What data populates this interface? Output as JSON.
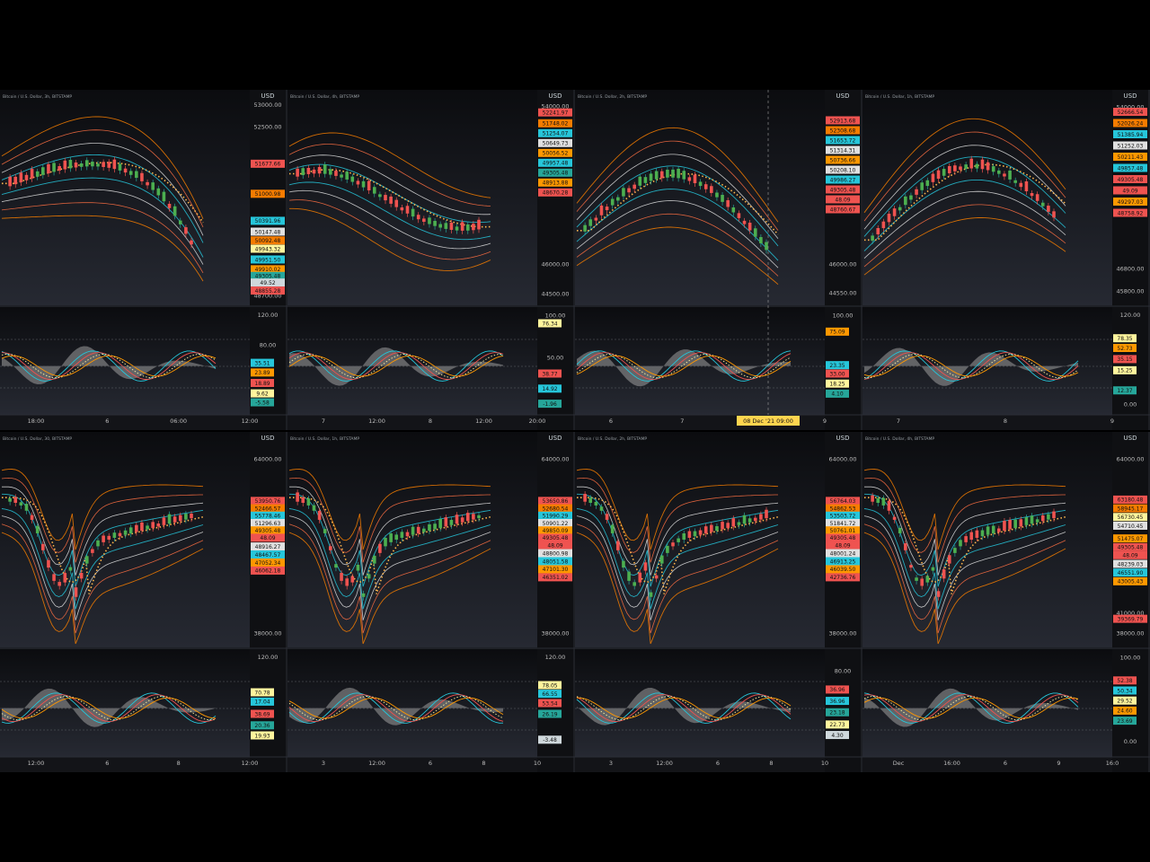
{
  "layout_title": "",
  "panels": [
    {
      "id": "p1",
      "title": "Bitcoin / U.S. Dollar, 3h, BITSTAMP",
      "unit": "USD",
      "price_ticks": [
        {
          "v": 53000,
          "label": "53000.00"
        },
        {
          "v": 52500,
          "label": "52500.00"
        },
        {
          "v": 48700,
          "label": "48700.00"
        }
      ],
      "price_badges": [
        {
          "v": 51677,
          "label": "51677.66",
          "color": "#ef5350"
        },
        {
          "v": 51000,
          "label": "51000.98",
          "color": "#f57c00"
        },
        {
          "v": 50391,
          "label": "50391.96",
          "color": "#26c6da"
        },
        {
          "v": 50147,
          "label": "50147.48",
          "color": "#e0e0e0"
        },
        {
          "v": 49950,
          "label": "50092.48",
          "color": "#f57c00"
        },
        {
          "v": 49763,
          "label": "49943.32",
          "color": "#fff59d"
        },
        {
          "v": 49520,
          "label": "49951.50",
          "color": "#26c6da"
        },
        {
          "v": 49300,
          "label": "49910.02",
          "color": "#ff9800"
        },
        {
          "v": 49150,
          "label": "49305.48",
          "color": "#26a69a"
        },
        {
          "v": 49000,
          "label": "49.52",
          "color": "#cfd8dc"
        },
        {
          "v": 48820,
          "label": "48855.28",
          "color": "#ef5350"
        }
      ],
      "price_range": [
        48650,
        53100
      ],
      "osc_ticks": [
        {
          "v": 120,
          "label": "120.00"
        },
        {
          "v": 80,
          "label": "80.00"
        }
      ],
      "osc_badges": [
        {
          "v": 55,
          "label": "35.51",
          "color": "#26c6da"
        },
        {
          "v": 42,
          "label": "23.89",
          "color": "#ff9800"
        },
        {
          "v": 28,
          "label": "18.89",
          "color": "#ef5350"
        },
        {
          "v": 14,
          "label": "9.62",
          "color": "#fff59d"
        },
        {
          "v": 2,
          "label": "-5.58",
          "color": "#26a69a"
        }
      ],
      "osc_range": [
        -10,
        125
      ],
      "time_ticks": [
        "18:00",
        "6",
        "06:00",
        "12:00"
      ],
      "trend": "down",
      "osc_seed": 1
    },
    {
      "id": "p2",
      "title": "Bitcoin / U.S. Dollar, 4h, BITSTAMP",
      "unit": "USD",
      "price_ticks": [
        {
          "v": 54000,
          "label": "54000.00"
        },
        {
          "v": 46000,
          "label": "46000.00"
        },
        {
          "v": 44500,
          "label": "44500.00"
        }
      ],
      "price_badges": [
        {
          "v": 53700,
          "label": "52241.97",
          "color": "#ef5350"
        },
        {
          "v": 53150,
          "label": "51748.02",
          "color": "#f57c00"
        },
        {
          "v": 52650,
          "label": "51254.07",
          "color": "#26c6da"
        },
        {
          "v": 52150,
          "label": "50649.73",
          "color": "#e0e0e0"
        },
        {
          "v": 51650,
          "label": "50056.52",
          "color": "#ff9800"
        },
        {
          "v": 51150,
          "label": "49957.48",
          "color": "#26c6da"
        },
        {
          "v": 50650,
          "label": "49305.48",
          "color": "#26a69a"
        },
        {
          "v": 50150,
          "label": "48913.88",
          "color": "#ff9800"
        },
        {
          "v": 49650,
          "label": "48670.28",
          "color": "#ef5350"
        }
      ],
      "price_range": [
        44300,
        54300
      ],
      "osc_ticks": [
        {
          "v": 100,
          "label": "100.00"
        },
        {
          "v": 50,
          "label": "50.00"
        }
      ],
      "osc_badges": [
        {
          "v": 90,
          "label": "76.34",
          "color": "#fff59d"
        },
        {
          "v": 30,
          "label": "38.77",
          "color": "#ef5350"
        },
        {
          "v": 12,
          "label": "14.92",
          "color": "#26c6da"
        },
        {
          "v": -6,
          "label": "-1.96",
          "color": "#26a69a"
        }
      ],
      "osc_range": [
        -15,
        105
      ],
      "time_ticks": [
        "7",
        "12:00",
        "8",
        "12:00",
        "20:00"
      ],
      "trend": "flat",
      "osc_seed": 2
    },
    {
      "id": "p3",
      "title": "Bitcoin / U.S. Dollar, 2h, BITSTAMP",
      "unit": "USD",
      "price_ticks": [
        {
          "v": 46000,
          "label": "46000.00"
        },
        {
          "v": 44550,
          "label": "44550.00"
        }
      ],
      "price_badges": [
        {
          "v": 53300,
          "label": "52913.68",
          "color": "#ef5350"
        },
        {
          "v": 52800,
          "label": "52308.68",
          "color": "#f57c00"
        },
        {
          "v": 52300,
          "label": "51653.72",
          "color": "#26c6da"
        },
        {
          "v": 51800,
          "label": "51314.31",
          "color": "#e0e0e0"
        },
        {
          "v": 51300,
          "label": "50736.66",
          "color": "#ff9800"
        },
        {
          "v": 50800,
          "label": "50208.10",
          "color": "#e0e0e0"
        },
        {
          "v": 50300,
          "label": "49986.27",
          "color": "#26c6da"
        },
        {
          "v": 49800,
          "label": "49305.48",
          "color": "#ef5350"
        },
        {
          "v": 49300,
          "label": "48.09",
          "color": "#ef5350"
        },
        {
          "v": 48800,
          "label": "48760.67",
          "color": "#ef5350"
        }
      ],
      "price_range": [
        44300,
        54300
      ],
      "osc_ticks": [
        {
          "v": 100,
          "label": "100.00"
        }
      ],
      "osc_badges": [
        {
          "v": 80,
          "label": "75.09",
          "color": "#ff9800"
        },
        {
          "v": 40,
          "label": "23.35",
          "color": "#26c6da"
        },
        {
          "v": 30,
          "label": "33.00",
          "color": "#ef5350"
        },
        {
          "v": 18,
          "label": "18.25",
          "color": "#fff59d"
        },
        {
          "v": 6,
          "label": "4.10",
          "color": "#26a69a"
        }
      ],
      "osc_range": [
        -15,
        105
      ],
      "time_ticks": [
        "6",
        "7",
        "8",
        "9"
      ],
      "cursor_label": "08 Dec '21  09:00",
      "trend": "updown",
      "osc_seed": 3
    },
    {
      "id": "p4",
      "title": "Bitcoin / U.S. Dollar, 1h, BITSTAMP",
      "unit": "USD",
      "price_ticks": [
        {
          "v": 54000,
          "label": "54000.00"
        },
        {
          "v": 46800,
          "label": "46800.00"
        },
        {
          "v": 45800,
          "label": "45800.00"
        }
      ],
      "price_badges": [
        {
          "v": 53800,
          "label": "52666.54",
          "color": "#ef5350"
        },
        {
          "v": 53300,
          "label": "52026.24",
          "color": "#f57c00"
        },
        {
          "v": 52800,
          "label": "51385.94",
          "color": "#26c6da"
        },
        {
          "v": 52300,
          "label": "51252.03",
          "color": "#e0e0e0"
        },
        {
          "v": 51800,
          "label": "50211.43",
          "color": "#ff9800"
        },
        {
          "v": 51300,
          "label": "49857.48",
          "color": "#26c6da"
        },
        {
          "v": 50800,
          "label": "49305.48",
          "color": "#ef5350"
        },
        {
          "v": 50300,
          "label": "49.09",
          "color": "#ef5350"
        },
        {
          "v": 49800,
          "label": "49297.03",
          "color": "#ff9800"
        },
        {
          "v": 49300,
          "label": "48758.92",
          "color": "#ef5350"
        }
      ],
      "price_range": [
        45500,
        54300
      ],
      "osc_ticks": [
        {
          "v": 120,
          "label": "120.00"
        },
        {
          "v": 0,
          "label": "0.00"
        }
      ],
      "osc_badges": [
        {
          "v": 88,
          "label": "78.35",
          "color": "#fff59d"
        },
        {
          "v": 75,
          "label": "52.73",
          "color": "#ff9800"
        },
        {
          "v": 60,
          "label": "35.15",
          "color": "#ef5350"
        },
        {
          "v": 45,
          "label": "15.25",
          "color": "#fff59d"
        },
        {
          "v": 18,
          "label": "12.37",
          "color": "#26a69a"
        }
      ],
      "osc_range": [
        -10,
        125
      ],
      "time_ticks": [
        "7",
        "8",
        "9"
      ],
      "trend": "updown2",
      "osc_seed": 4
    },
    {
      "id": "p5",
      "title": "Bitcoin / U.S. Dollar, 30, BITSTAMP",
      "unit": "USD",
      "price_ticks": [
        {
          "v": 64000,
          "label": "64000.00"
        },
        {
          "v": 38000,
          "label": "38000.00"
        }
      ],
      "price_badges": [
        {
          "v": 57800,
          "label": "53950.76",
          "color": "#ef5350"
        },
        {
          "v": 56700,
          "label": "52466.57",
          "color": "#f57c00"
        },
        {
          "v": 55600,
          "label": "55778.46",
          "color": "#26c6da"
        },
        {
          "v": 54500,
          "label": "51296.63",
          "color": "#e0e0e0"
        },
        {
          "v": 53400,
          "label": "49305.48",
          "color": "#ff9800"
        },
        {
          "v": 52300,
          "label": "48.09",
          "color": "#ef5350"
        },
        {
          "v": 51000,
          "label": "48916.27",
          "color": "#e0e0e0"
        },
        {
          "v": 49800,
          "label": "48467.57",
          "color": "#26c6da"
        },
        {
          "v": 48600,
          "label": "47052.34",
          "color": "#ff9800"
        },
        {
          "v": 47400,
          "label": "46062.18",
          "color": "#ef5350"
        }
      ],
      "price_range": [
        37000,
        66500
      ],
      "osc_ticks": [
        {
          "v": 120,
          "label": "120.00"
        }
      ],
      "osc_badges": [
        {
          "v": 70,
          "label": "70.78",
          "color": "#fff59d"
        },
        {
          "v": 57,
          "label": "17.04",
          "color": "#26c6da"
        },
        {
          "v": 40,
          "label": "38.69",
          "color": "#ef5350"
        },
        {
          "v": 24,
          "label": "20.36",
          "color": "#26a69a"
        },
        {
          "v": 10,
          "label": "19.93",
          "color": "#fff59d"
        }
      ],
      "osc_range": [
        -15,
        125
      ],
      "time_ticks": [
        "12:00",
        "6",
        "8",
        "12:00"
      ],
      "trend": "dip",
      "osc_seed": 5
    },
    {
      "id": "p6",
      "title": "Bitcoin / U.S. Dollar, 1h, BITSTAMP",
      "unit": "USD",
      "price_ticks": [
        {
          "v": 64000,
          "label": "64000.00"
        },
        {
          "v": 38000,
          "label": "38000.00"
        }
      ],
      "price_badges": [
        {
          "v": 57800,
          "label": "53650.86",
          "color": "#ef5350"
        },
        {
          "v": 56700,
          "label": "52680.54",
          "color": "#f57c00"
        },
        {
          "v": 55600,
          "label": "51990.29",
          "color": "#26c6da"
        },
        {
          "v": 54500,
          "label": "50901.22",
          "color": "#e0e0e0"
        },
        {
          "v": 53400,
          "label": "49850.09",
          "color": "#ff9800"
        },
        {
          "v": 52300,
          "label": "49305.48",
          "color": "#ef5350"
        },
        {
          "v": 51200,
          "label": "48.09",
          "color": "#ef5350"
        },
        {
          "v": 50000,
          "label": "48800.98",
          "color": "#e0e0e0"
        },
        {
          "v": 48800,
          "label": "48051.58",
          "color": "#26c6da"
        },
        {
          "v": 47600,
          "label": "47101.30",
          "color": "#ff9800"
        },
        {
          "v": 46400,
          "label": "46351.02",
          "color": "#ef5350"
        }
      ],
      "price_range": [
        37000,
        66500
      ],
      "osc_ticks": [
        {
          "v": 120,
          "label": "120.00"
        }
      ],
      "osc_badges": [
        {
          "v": 80,
          "label": "78.05",
          "color": "#fff59d"
        },
        {
          "v": 68,
          "label": "66.55",
          "color": "#26c6da"
        },
        {
          "v": 55,
          "label": "53.54",
          "color": "#ef5350"
        },
        {
          "v": 40,
          "label": "26.19",
          "color": "#26a69a"
        },
        {
          "v": 4,
          "label": "-3.48",
          "color": "#cfd8dc"
        }
      ],
      "osc_range": [
        -15,
        125
      ],
      "time_ticks": [
        "3",
        "12:00",
        "6",
        "8",
        "10"
      ],
      "trend": "dip",
      "osc_seed": 6
    },
    {
      "id": "p7",
      "title": "Bitcoin / U.S. Dollar, 2h, BITSTAMP",
      "unit": "USD",
      "price_ticks": [
        {
          "v": 64000,
          "label": "64000.00"
        },
        {
          "v": 38000,
          "label": "38000.00"
        }
      ],
      "price_badges": [
        {
          "v": 57800,
          "label": "56764.03",
          "color": "#ef5350"
        },
        {
          "v": 56700,
          "label": "54862.53",
          "color": "#f57c00"
        },
        {
          "v": 55600,
          "label": "53503.72",
          "color": "#26c6da"
        },
        {
          "v": 54500,
          "label": "51841.72",
          "color": "#e0e0e0"
        },
        {
          "v": 53400,
          "label": "50761.01",
          "color": "#ff9800"
        },
        {
          "v": 52300,
          "label": "49305.48",
          "color": "#ef5350"
        },
        {
          "v": 51200,
          "label": "48.09",
          "color": "#ef5350"
        },
        {
          "v": 50000,
          "label": "48001.24",
          "color": "#e0e0e0"
        },
        {
          "v": 48800,
          "label": "46913.25",
          "color": "#26c6da"
        },
        {
          "v": 47600,
          "label": "46039.50",
          "color": "#ff9800"
        },
        {
          "v": 46400,
          "label": "42736.76",
          "color": "#ef5350"
        }
      ],
      "price_range": [
        37000,
        66500
      ],
      "osc_ticks": [
        {
          "v": 80,
          "label": "80.00"
        }
      ],
      "osc_badges": [
        {
          "v": 58,
          "label": "36.96",
          "color": "#ef5350"
        },
        {
          "v": 45,
          "label": "36.96",
          "color": "#26c6da"
        },
        {
          "v": 32,
          "label": "23.18",
          "color": "#26a69a"
        },
        {
          "v": 18,
          "label": "22.73",
          "color": "#fff59d"
        },
        {
          "v": 6,
          "label": "4.30",
          "color": "#cfd8dc"
        }
      ],
      "osc_range": [
        -15,
        100
      ],
      "time_ticks": [
        "3",
        "12:00",
        "6",
        "8",
        "10"
      ],
      "trend": "dip",
      "osc_seed": 7
    },
    {
      "id": "p8",
      "title": "Bitcoin / U.S. Dollar, 4h, BITSTAMP",
      "unit": "USD",
      "price_ticks": [
        {
          "v": 64000,
          "label": "64000.00"
        },
        {
          "v": 41000,
          "label": "41000.00"
        },
        {
          "v": 38000,
          "label": "38000.00"
        }
      ],
      "price_badges": [
        {
          "v": 58000,
          "label": "63180.48",
          "color": "#ef5350"
        },
        {
          "v": 56700,
          "label": "58945.17",
          "color": "#f57c00"
        },
        {
          "v": 55400,
          "label": "56730.45",
          "color": "#fff59d"
        },
        {
          "v": 54100,
          "label": "54710.45",
          "color": "#e0e0e0"
        },
        {
          "v": 52200,
          "label": "51475.07",
          "color": "#ff9800"
        },
        {
          "v": 50900,
          "label": "49305.48",
          "color": "#ef5350"
        },
        {
          "v": 49700,
          "label": "48.09",
          "color": "#ef5350"
        },
        {
          "v": 48400,
          "label": "48239.03",
          "color": "#e0e0e0"
        },
        {
          "v": 47100,
          "label": "46551.90",
          "color": "#26c6da"
        },
        {
          "v": 45800,
          "label": "43005.43",
          "color": "#ff9800"
        },
        {
          "v": 40200,
          "label": "39369.79",
          "color": "#ef5350"
        }
      ],
      "price_range": [
        37000,
        66500
      ],
      "osc_ticks": [
        {
          "v": 100,
          "label": "100.00"
        },
        {
          "v": 0,
          "label": "0.00"
        }
      ],
      "osc_badges": [
        {
          "v": 72,
          "label": "52.38",
          "color": "#ef5350"
        },
        {
          "v": 60,
          "label": "50.34",
          "color": "#26c6da"
        },
        {
          "v": 48,
          "label": "29.52",
          "color": "#fff59d"
        },
        {
          "v": 36,
          "label": "24.60",
          "color": "#ff9800"
        },
        {
          "v": 24,
          "label": "23.69",
          "color": "#26a69a"
        }
      ],
      "osc_range": [
        -15,
        105
      ],
      "time_ticks": [
        "Dec",
        "16:00",
        "6",
        "9",
        "16:0"
      ],
      "trend": "dip",
      "osc_seed": 8
    }
  ],
  "colors": {
    "background": "#131418",
    "up": "#26a69a",
    "down": "#ef5350",
    "band_outer": "#f57c00",
    "band_mid": "#e0e0e0",
    "band_inner": "#26c6da",
    "osc_area": "#9e9e9e"
  }
}
